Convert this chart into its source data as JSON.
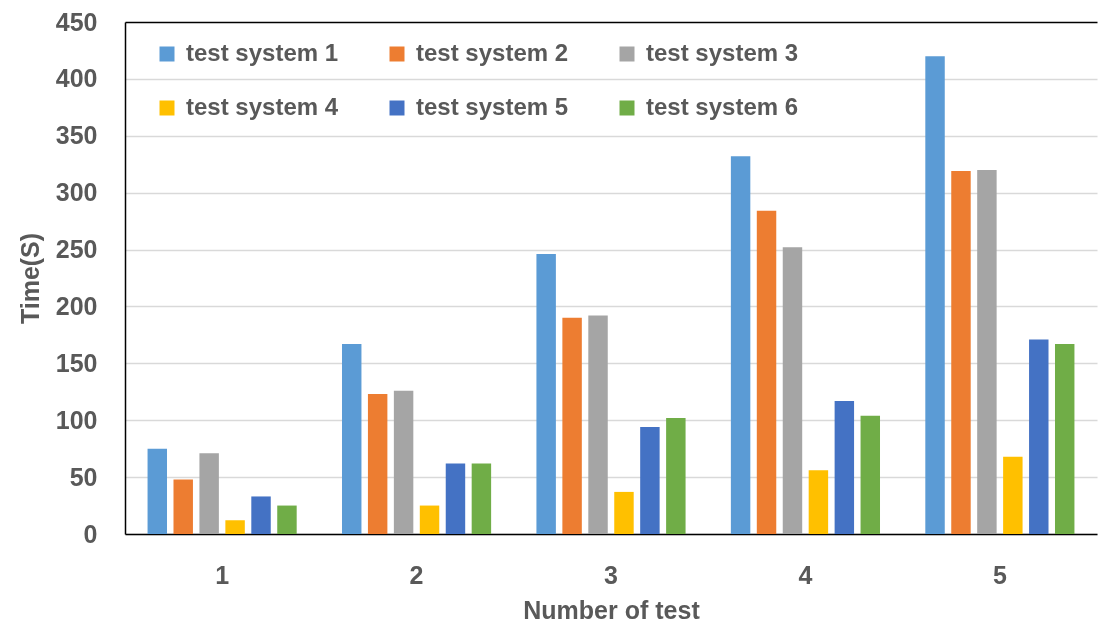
{
  "chart_data": {
    "type": "bar",
    "xlabel": "Number of test",
    "ylabel": "Time(S)",
    "categories": [
      "1",
      "2",
      "3",
      "4",
      "5"
    ],
    "series": [
      {
        "name": "test system 1",
        "color": "#5b9bd5",
        "values": [
          75,
          167,
          246,
          332,
          420
        ]
      },
      {
        "name": "test system 2",
        "color": "#ed7d31",
        "values": [
          48,
          123,
          190,
          284,
          319
        ]
      },
      {
        "name": "test system 3",
        "color": "#a5a5a5",
        "values": [
          71,
          126,
          192,
          252,
          320
        ]
      },
      {
        "name": "test system 4",
        "color": "#ffc000",
        "values": [
          12,
          25,
          37,
          56,
          68
        ]
      },
      {
        "name": "test system 5",
        "color": "#4472c4",
        "values": [
          33,
          62,
          94,
          117,
          171
        ]
      },
      {
        "name": "test system 6",
        "color": "#70ad47",
        "values": [
          25,
          62,
          102,
          104,
          167
        ]
      }
    ],
    "ylim": [
      0,
      450
    ],
    "yticks": [
      0,
      50,
      100,
      150,
      200,
      250,
      300,
      350,
      400,
      450
    ],
    "grid": "y",
    "legend": "top left"
  }
}
